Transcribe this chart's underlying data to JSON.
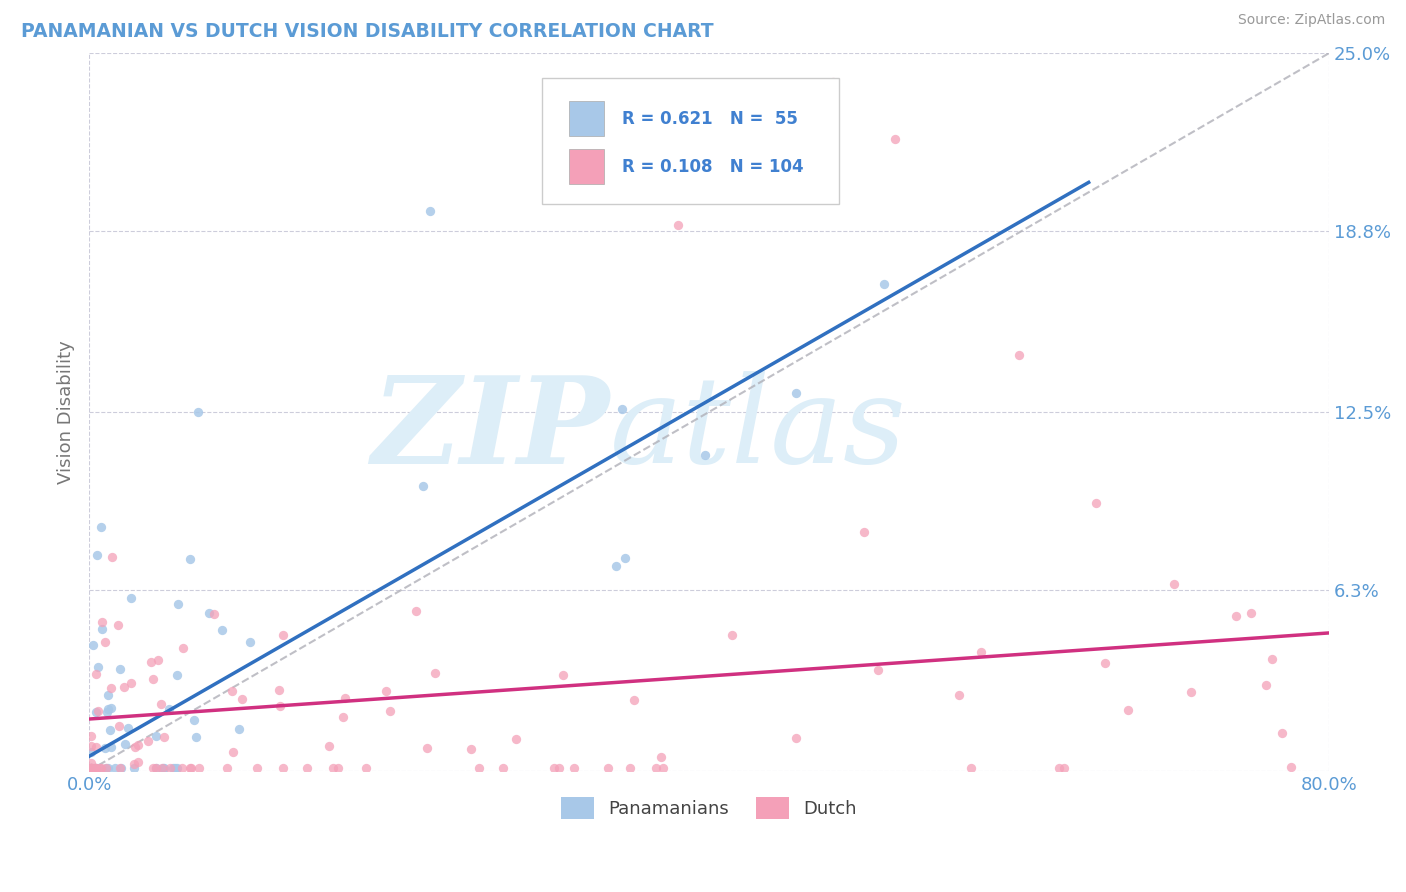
{
  "title": "PANAMANIAN VS DUTCH VISION DISABILITY CORRELATION CHART",
  "source": "Source: ZipAtlas.com",
  "ylabel": "Vision Disability",
  "xlim": [
    0.0,
    0.8
  ],
  "ylim": [
    0.0,
    0.25
  ],
  "legend_r1": "R = 0.621",
  "legend_n1": "N =  55",
  "legend_r2": "R = 0.108",
  "legend_n2": "N = 104",
  "color_blue_scatter": "#a8c8e8",
  "color_pink_scatter": "#f4a0b8",
  "color_line_blue": "#3070c0",
  "color_line_pink": "#d03080",
  "color_legend_blue": "#4080d0",
  "color_title": "#5b9bd5",
  "color_ytick": "#5b9bd5",
  "color_xtick": "#5b9bd5",
  "color_source": "#999999",
  "color_grid": "#c8c8d8",
  "color_dash_ref": "#b0b0b8",
  "watermark_zip": "ZIP",
  "watermark_atlas": "atlas",
  "watermark_color": "#ddeef8",
  "blue_line_x0": 0.0,
  "blue_line_y0": 0.005,
  "blue_line_x1": 0.645,
  "blue_line_y1": 0.205,
  "pink_line_x0": 0.0,
  "pink_line_y0": 0.018,
  "pink_line_x1": 0.8,
  "pink_line_y1": 0.048,
  "ref_line_x0": 0.0,
  "ref_line_y0": 0.0,
  "ref_line_x1": 0.8,
  "ref_line_y1": 0.25
}
